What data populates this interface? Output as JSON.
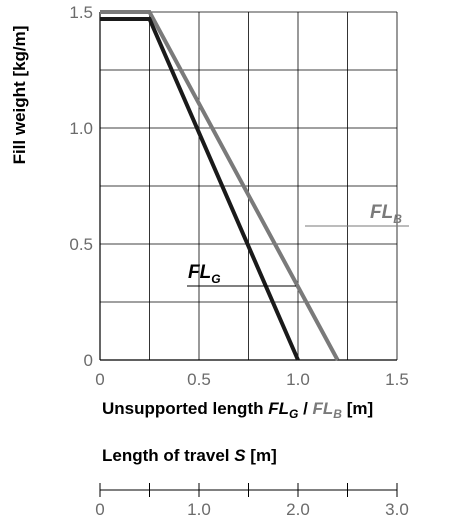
{
  "chart_data": {
    "type": "line",
    "ylabel": "Fill weight [kg/m]",
    "xlabel_parts": [
      "Unsupported length ",
      "FL",
      "G",
      " / ",
      "FL",
      "B",
      " [m]"
    ],
    "xlim": [
      0,
      1.5
    ],
    "ylim": [
      0,
      1.5
    ],
    "x_ticks": [
      "0",
      "0.5",
      "1.0",
      "1.5"
    ],
    "y_ticks": [
      "0",
      "0.5",
      "1.0",
      "1.5"
    ],
    "grid": true,
    "series": [
      {
        "name": "FL_G",
        "label_main": "FL",
        "label_sub": "G",
        "color": "#1a1a1a",
        "points": [
          [
            0,
            1.47
          ],
          [
            0.25,
            1.47
          ],
          [
            1.0,
            0
          ]
        ]
      },
      {
        "name": "FL_B",
        "label_main": "FL",
        "label_sub": "B",
        "color": "#7a7a7a",
        "points": [
          [
            0,
            1.5
          ],
          [
            0.25,
            1.5
          ],
          [
            1.2,
            0
          ]
        ]
      }
    ],
    "secondary_axis": {
      "title_parts": [
        "Length of travel ",
        "S",
        " [m]"
      ],
      "range": [
        0,
        3.0
      ],
      "tick_labels": [
        "0",
        "1.0",
        "2.0",
        "3.0"
      ],
      "minor_ticks": [
        0.5,
        1.5,
        2.5
      ]
    }
  }
}
